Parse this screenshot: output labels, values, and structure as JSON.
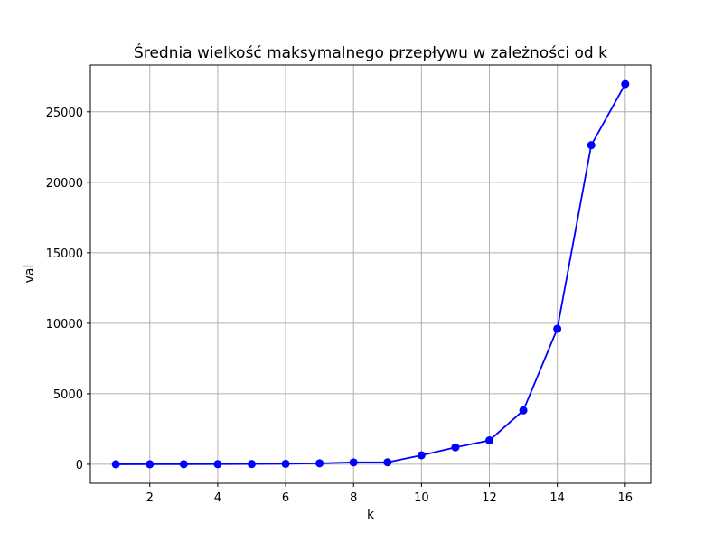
{
  "chart_data": {
    "type": "line",
    "title": "Średnia wielkość maksymalnego przepływu w zależności od k",
    "xlabel": "k",
    "ylabel": "val",
    "x": [
      1,
      2,
      3,
      4,
      5,
      6,
      7,
      8,
      9,
      10,
      11,
      12,
      13,
      14,
      15,
      16
    ],
    "series": [
      {
        "values": [
          1,
          3,
          5,
          10,
          18,
          35,
          70,
          135,
          140,
          640,
          1200,
          1690,
          3820,
          9610,
          22640,
          26970
        ],
        "color": "#0000ff",
        "marker": "circle"
      }
    ],
    "xlim": [
      0.25,
      16.75
    ],
    "ylim": [
      -1350,
      28320
    ],
    "xticks": [
      2,
      4,
      6,
      8,
      10,
      12,
      14,
      16
    ],
    "yticks": [
      0,
      5000,
      10000,
      15000,
      20000,
      25000
    ],
    "grid": true,
    "legend": "none",
    "colors": {
      "grid": "#b0b0b0",
      "axes": "#000000"
    }
  }
}
